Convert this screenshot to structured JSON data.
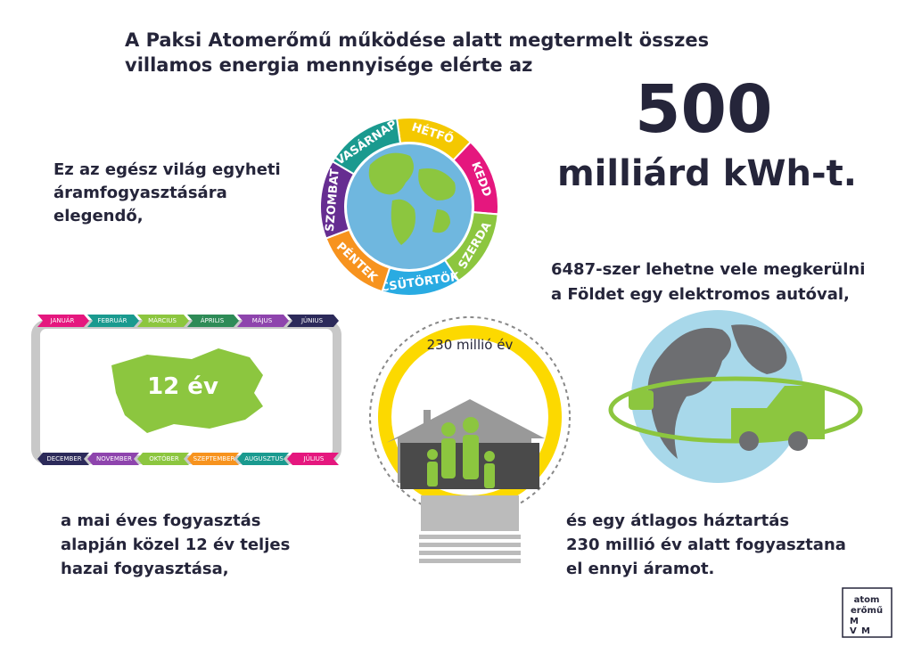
{
  "headline": [
    "A Paksi Atomerőmű működése alatt megtermelt összes",
    "villamos energia mennyisége elérte az"
  ],
  "big_number": "500",
  "unit": "milliárd kWh-t.",
  "week_text": [
    "Ez az egész világ egyheti",
    "áramfogyasztására",
    "elegendő,"
  ],
  "days": [
    "HÉTFŐ",
    "KEDD",
    "SZERDA",
    "CSÜTÖRTÖK",
    "PÉNTEK",
    "SZOMBAT",
    "VASÁRNAP"
  ],
  "car_text": [
    "6487-szer lehetne vele megkerülni",
    "a Földet egy elektromos autóval,"
  ],
  "months_top": [
    "JANUÁR",
    "FEBRUÁR",
    "MÁRCIUS",
    "ÁPRILIS",
    "MÁJUS",
    "JÚNIUS"
  ],
  "months_bottom": [
    "DECEMBER",
    "NOVEMBER",
    "OKTÓBER",
    "SZEPTEMBER",
    "AUGUSZTUS",
    "JÚLIUS"
  ],
  "years_label": "12 év",
  "bulb_label": "230 millió év",
  "country_text": [
    "a mai éves fogyasztás",
    "alapján közel 12 év teljes",
    "hazai fogyasztása,"
  ],
  "household_text": [
    "és egy átlagos háztartás",
    "230 millió év alatt fogyasztana",
    "el ennyi áramot."
  ],
  "logo": {
    "line1": "atom",
    "line2": "erőmű",
    "letters": [
      "M",
      "V",
      "M"
    ]
  }
}
